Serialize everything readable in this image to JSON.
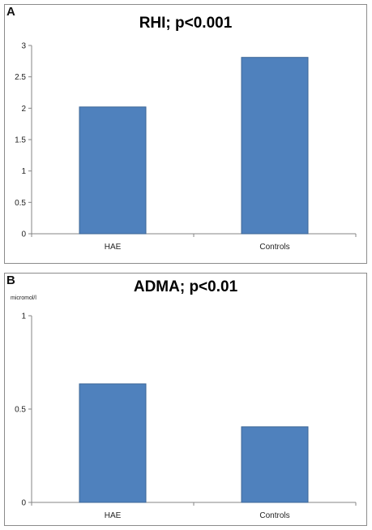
{
  "chart_data": [
    {
      "panel": "A",
      "type": "bar",
      "title": "RHI; p<0.001",
      "categories": [
        "HAE",
        "Controls"
      ],
      "values": [
        2.02,
        2.81
      ],
      "yticks": [
        "0",
        "0.5",
        "1",
        "1.5",
        "2",
        "2.5",
        "3"
      ],
      "ylim": [
        0,
        3
      ],
      "ylabel": "",
      "xlabel": "",
      "grid": false,
      "legend": "none",
      "bar_color": "#4f81bd"
    },
    {
      "panel": "B",
      "type": "bar",
      "title": "ADMA; p<0.01",
      "unit_label": "micromol/l",
      "categories": [
        "HAE",
        "Controls"
      ],
      "values": [
        0.635,
        0.405
      ],
      "yticks": [
        "0",
        "0.5",
        "1"
      ],
      "ylim": [
        0,
        1
      ],
      "ylabel": "",
      "xlabel": "",
      "grid": false,
      "legend": "none",
      "bar_color": "#4f81bd"
    }
  ]
}
